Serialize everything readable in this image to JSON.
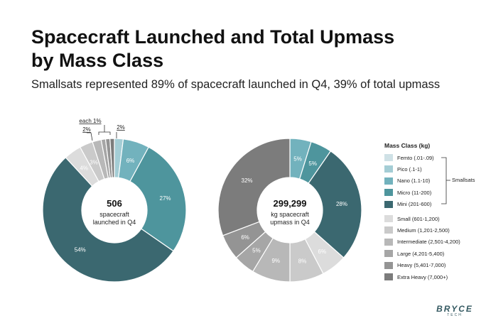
{
  "title_line1": "Spacecraft Launched and Total Upmass",
  "title_line2": "by Mass Class",
  "subtitle": "Smallsats represented 89% of spacecraft launched in Q4, 39% of total upmass",
  "legend": {
    "title": "Mass Class (kg)",
    "group_label": "Smallsats",
    "items": [
      {
        "label": "Femto (.01-.09)",
        "color": "#cfe1e6"
      },
      {
        "label": "Pico (.1-1)",
        "color": "#a4cdd5"
      },
      {
        "label": "Nano (1.1-10)",
        "color": "#72b2bd"
      },
      {
        "label": "Micro (11-200)",
        "color": "#4e959d"
      },
      {
        "label": "Mini (201-600)",
        "color": "#3b6870"
      },
      {
        "label": "Small (601-1,200)",
        "color": "#dcdcdc"
      },
      {
        "label": "Medium (1,201-2,500)",
        "color": "#cacaca"
      },
      {
        "label": "Intermediate (2,501-4,200)",
        "color": "#b8b8b8"
      },
      {
        "label": "Large (4,201-5,400)",
        "color": "#a6a6a6"
      },
      {
        "label": "Heavy (5,401-7,000)",
        "color": "#949494"
      },
      {
        "label": "Extra Heavy (7,000+)",
        "color": "#7c7c7c"
      }
    ]
  },
  "chart_data": [
    {
      "type": "pie",
      "center_value": "506",
      "center_label_line1": "spacecraft",
      "center_label_line2": "launched in Q4",
      "slices": [
        {
          "category": "Femto (.01-.09)",
          "value": 0,
          "label": ""
        },
        {
          "category": "Pico (.1-1)",
          "value": 2,
          "label": "2%"
        },
        {
          "category": "Nano (1.1-10)",
          "value": 6,
          "label": "6%"
        },
        {
          "category": "Micro (11-200)",
          "value": 27,
          "label": "27%"
        },
        {
          "category": "Mini (201-600)",
          "value": 54,
          "label": "54%"
        },
        {
          "category": "Small (601-1,200)",
          "value": 4,
          "label": "4%"
        },
        {
          "category": "Medium (1,201-2,500)",
          "value": 3,
          "label": "3%"
        },
        {
          "category": "Intermediate (2,501-4,200)",
          "value": 2,
          "label": "2%"
        },
        {
          "category": "Large (4,201-5,400)",
          "value": 1,
          "label": ""
        },
        {
          "category": "Heavy (5,401-7,000)",
          "value": 1,
          "label": ""
        },
        {
          "category": "Extra Heavy (7,000+)",
          "value": 1,
          "label": ""
        }
      ],
      "annotations": [
        "each 1%",
        "2%"
      ]
    },
    {
      "type": "pie",
      "center_value": "299,299",
      "center_label_line1": "kg spacecraft",
      "center_label_line2": "upmass in Q4",
      "slices": [
        {
          "category": "Femto (.01-.09)",
          "value": 0,
          "label": ""
        },
        {
          "category": "Pico (.1-1)",
          "value": 0,
          "label": ""
        },
        {
          "category": "Nano (1.1-10)",
          "value": 5,
          "label": "5%"
        },
        {
          "category": "Micro (11-200)",
          "value": 5,
          "label": "5%"
        },
        {
          "category": "Mini (201-600)",
          "value": 28,
          "label": "28%"
        },
        {
          "category": "Small (601-1,200)",
          "value": 6,
          "label": "6%"
        },
        {
          "category": "Medium (1,201-2,500)",
          "value": 8,
          "label": "8%"
        },
        {
          "category": "Intermediate (2,501-4,200)",
          "value": 9,
          "label": "9%"
        },
        {
          "category": "Large (4,201-5,400)",
          "value": 5,
          "label": "5%"
        },
        {
          "category": "Heavy (5,401-7,000)",
          "value": 6,
          "label": "6%"
        },
        {
          "category": "Extra Heavy (7,000+)",
          "value": 32,
          "label": "32%"
        }
      ]
    }
  ],
  "logo": {
    "main": "BRYCE",
    "sub": "TECH"
  }
}
